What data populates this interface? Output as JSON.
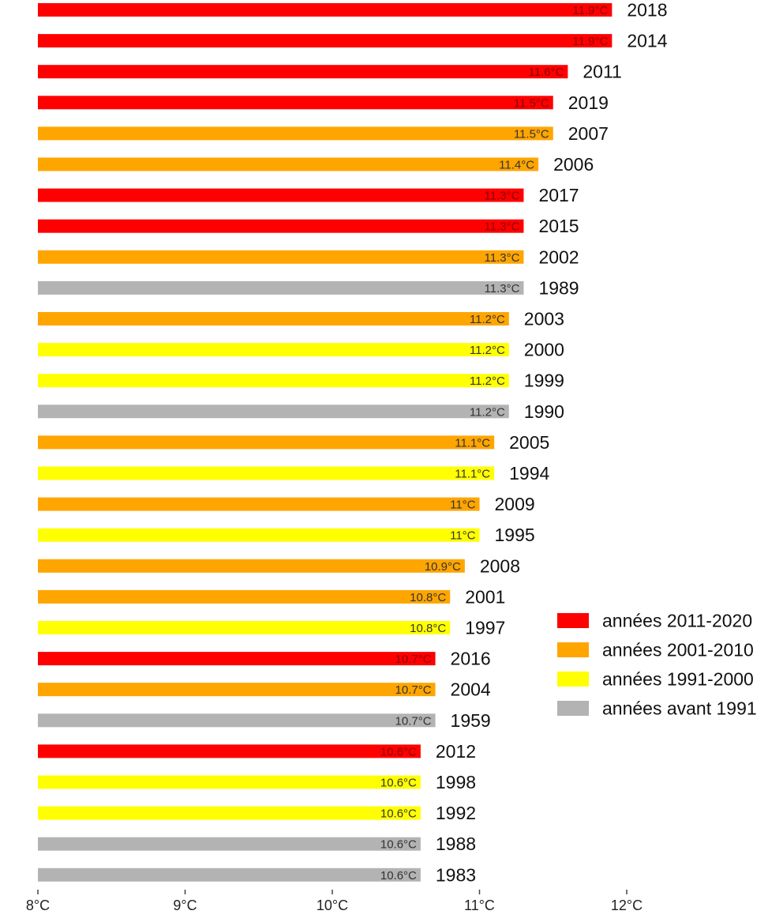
{
  "chart_data": {
    "type": "bar",
    "orientation": "horizontal",
    "title": "",
    "xlabel": "",
    "ylabel": "",
    "xlim": [
      8,
      12
    ],
    "x_ticks": [
      8,
      9,
      10,
      11,
      12
    ],
    "x_tick_labels": [
      "8°C",
      "9°C",
      "10°C",
      "11°C",
      "12°C"
    ],
    "grid": false,
    "legend_position": "right",
    "groups": [
      {
        "name": "années 2011-2020",
        "color": "#ff0000"
      },
      {
        "name": "années 2001-2010",
        "color": "#ffa500"
      },
      {
        "name": "années 1991-2000",
        "color": "#ffff00"
      },
      {
        "name": "années avant 1991",
        "color": "#b3b3b3"
      }
    ],
    "bars": [
      {
        "year": "2018",
        "value": 11.9,
        "label": "11.9°C",
        "group": 0
      },
      {
        "year": "2014",
        "value": 11.9,
        "label": "11.9°C",
        "group": 0
      },
      {
        "year": "2011",
        "value": 11.6,
        "label": "11.6°C",
        "group": 0
      },
      {
        "year": "2019",
        "value": 11.5,
        "label": "11.5°C",
        "group": 0
      },
      {
        "year": "2007",
        "value": 11.5,
        "label": "11.5°C",
        "group": 1
      },
      {
        "year": "2006",
        "value": 11.4,
        "label": "11.4°C",
        "group": 1
      },
      {
        "year": "2017",
        "value": 11.3,
        "label": "11.3°C",
        "group": 0
      },
      {
        "year": "2015",
        "value": 11.3,
        "label": "11.3°C",
        "group": 0
      },
      {
        "year": "2002",
        "value": 11.3,
        "label": "11.3°C",
        "group": 1
      },
      {
        "year": "1989",
        "value": 11.3,
        "label": "11.3°C",
        "group": 3
      },
      {
        "year": "2003",
        "value": 11.2,
        "label": "11.2°C",
        "group": 1
      },
      {
        "year": "2000",
        "value": 11.2,
        "label": "11.2°C",
        "group": 2
      },
      {
        "year": "1999",
        "value": 11.2,
        "label": "11.2°C",
        "group": 2
      },
      {
        "year": "1990",
        "value": 11.2,
        "label": "11.2°C",
        "group": 3
      },
      {
        "year": "2005",
        "value": 11.1,
        "label": "11.1°C",
        "group": 1
      },
      {
        "year": "1994",
        "value": 11.1,
        "label": "11.1°C",
        "group": 2
      },
      {
        "year": "2009",
        "value": 11.0,
        "label": "11°C",
        "group": 1
      },
      {
        "year": "1995",
        "value": 11.0,
        "label": "11°C",
        "group": 2
      },
      {
        "year": "2008",
        "value": 10.9,
        "label": "10.9°C",
        "group": 1
      },
      {
        "year": "2001",
        "value": 10.8,
        "label": "10.8°C",
        "group": 1
      },
      {
        "year": "1997",
        "value": 10.8,
        "label": "10.8°C",
        "group": 2
      },
      {
        "year": "2016",
        "value": 10.7,
        "label": "10.7°C",
        "group": 0
      },
      {
        "year": "2004",
        "value": 10.7,
        "label": "10.7°C",
        "group": 1
      },
      {
        "year": "1959",
        "value": 10.7,
        "label": "10.7°C",
        "group": 3
      },
      {
        "year": "2012",
        "value": 10.6,
        "label": "10.6°C",
        "group": 0
      },
      {
        "year": "1998",
        "value": 10.6,
        "label": "10.6°C",
        "group": 2
      },
      {
        "year": "1992",
        "value": 10.6,
        "label": "10.6°C",
        "group": 2
      },
      {
        "year": "1988",
        "value": 10.6,
        "label": "10.6°C",
        "group": 3
      },
      {
        "year": "1983",
        "value": 10.6,
        "label": "10.6°C",
        "group": 3
      }
    ]
  }
}
